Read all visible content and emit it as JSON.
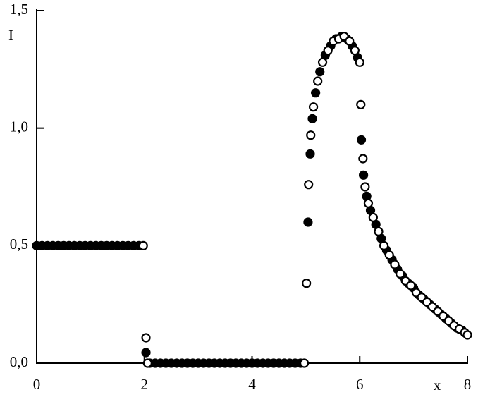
{
  "chart_data": {
    "type": "scatter",
    "x_label": "x",
    "y_label": "I",
    "xlim": [
      0,
      8
    ],
    "ylim": [
      0,
      1.5
    ],
    "xticks": [
      0,
      2,
      4,
      6,
      8
    ],
    "yticks": [
      {
        "value": 0,
        "label": "0,0"
      },
      {
        "value": 0.5,
        "label": "0,5"
      },
      {
        "value": 1,
        "label": "1,0"
      },
      {
        "value": 1.5,
        "label": "1,5"
      }
    ],
    "series": [
      {
        "color": "#000000",
        "marker": "filled",
        "x": [
          0,
          0.1,
          0.2,
          0.3,
          0.4,
          0.5,
          0.6,
          0.7,
          0.8,
          0.9,
          1.0,
          1.1,
          1.2,
          1.3,
          1.4,
          1.5,
          1.6,
          1.7,
          1.8,
          1.9,
          2.03,
          2.1,
          2.2,
          2.3,
          2.4,
          2.5,
          2.6,
          2.7,
          2.8,
          2.9,
          3.0,
          3.1,
          3.2,
          3.3,
          3.4,
          3.5,
          3.6,
          3.7,
          3.8,
          3.9,
          4.0,
          4.1,
          4.2,
          4.3,
          4.4,
          4.5,
          4.6,
          4.7,
          4.8,
          4.9,
          5.04,
          5.08,
          5.12,
          5.18,
          5.26,
          5.36,
          5.46,
          5.56,
          5.66,
          5.76,
          5.86,
          5.96,
          6.03,
          6.07,
          6.13,
          6.2,
          6.3,
          6.4,
          6.5,
          6.6,
          6.7,
          6.8,
          6.9,
          7.0,
          7.1,
          7.2,
          7.3,
          7.4,
          7.5,
          7.6,
          7.7,
          7.8,
          7.9
        ],
        "values": [
          0.5,
          0.5,
          0.5,
          0.5,
          0.5,
          0.5,
          0.5,
          0.5,
          0.5,
          0.5,
          0.5,
          0.5,
          0.5,
          0.5,
          0.5,
          0.5,
          0.5,
          0.5,
          0.5,
          0.5,
          0.045,
          0,
          0,
          0,
          0,
          0,
          0,
          0,
          0,
          0,
          0,
          0,
          0,
          0,
          0,
          0,
          0,
          0,
          0,
          0,
          0,
          0,
          0,
          0,
          0,
          0,
          0,
          0,
          0,
          0,
          0.6,
          0.89,
          1.04,
          1.15,
          1.24,
          1.31,
          1.35,
          1.38,
          1.39,
          1.38,
          1.35,
          1.3,
          0.95,
          0.8,
          0.71,
          0.65,
          0.59,
          0.53,
          0.48,
          0.44,
          0.4,
          0.37,
          0.34,
          0.32,
          0.29,
          0.27,
          0.25,
          0.23,
          0.21,
          0.19,
          0.17,
          0.15,
          0.14
        ]
      },
      {
        "color": "#000000",
        "marker": "open",
        "x": [
          1.98,
          2.03,
          2.06,
          4.97,
          5.01,
          5.05,
          5.09,
          5.14,
          5.22,
          5.31,
          5.41,
          5.51,
          5.61,
          5.71,
          5.81,
          5.91,
          6.0,
          6.02,
          6.06,
          6.1,
          6.16,
          6.25,
          6.35,
          6.45,
          6.55,
          6.65,
          6.75,
          6.85,
          6.95,
          7.05,
          7.15,
          7.25,
          7.35,
          7.45,
          7.55,
          7.65,
          7.75,
          7.85,
          7.95,
          8.0
        ],
        "values": [
          0.5,
          0.108,
          0,
          0,
          0.34,
          0.76,
          0.97,
          1.09,
          1.2,
          1.28,
          1.33,
          1.37,
          1.38,
          1.39,
          1.37,
          1.33,
          1.28,
          1.1,
          0.87,
          0.75,
          0.68,
          0.62,
          0.56,
          0.5,
          0.46,
          0.42,
          0.38,
          0.35,
          0.33,
          0.3,
          0.28,
          0.26,
          0.24,
          0.22,
          0.2,
          0.18,
          0.16,
          0.145,
          0.13,
          0.12
        ]
      }
    ]
  }
}
